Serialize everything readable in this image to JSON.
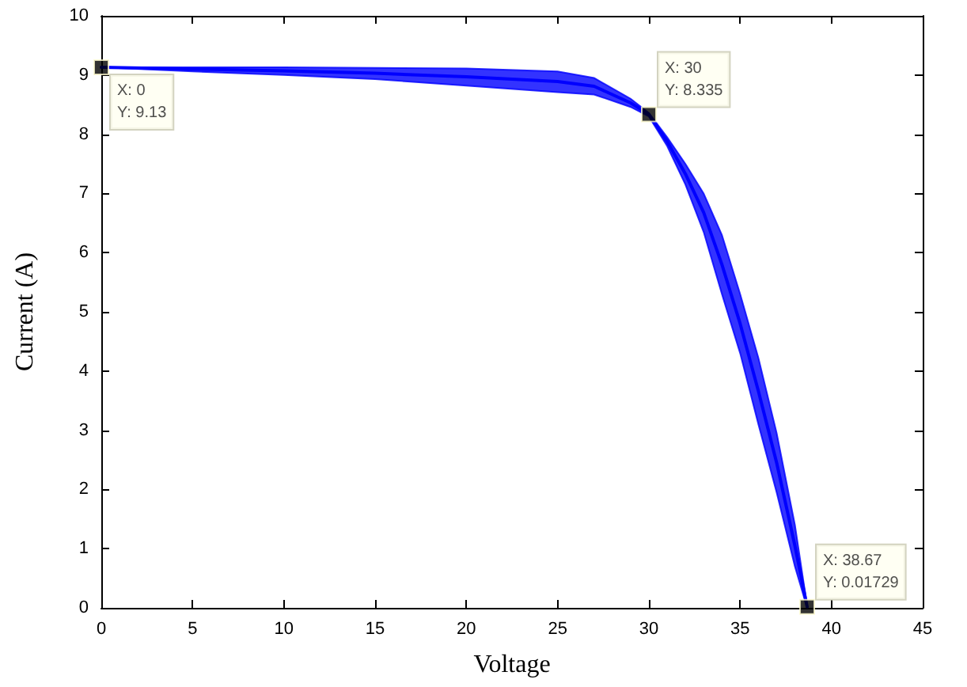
{
  "chart_data": {
    "type": "line",
    "xlabel": "Voltage",
    "ylabel": "Current (A)",
    "xlim": [
      0,
      45
    ],
    "xticks": [
      0,
      5,
      10,
      15,
      20,
      25,
      30,
      35,
      40,
      45
    ],
    "ylim": [
      0,
      10
    ],
    "yticks": [
      0,
      1,
      2,
      3,
      4,
      5,
      6,
      7,
      8,
      9,
      10
    ],
    "grid": false,
    "series": [
      {
        "color": "#0000ff",
        "marker": "none",
        "x": [
          0,
          5,
          10,
          15,
          20,
          25,
          27,
          29,
          30,
          31,
          32,
          33,
          34,
          35,
          36,
          37,
          38,
          38.67
        ],
        "values": [
          9.13,
          9.1,
          9.07,
          9.03,
          8.97,
          8.89,
          8.81,
          8.53,
          8.335,
          7.88,
          7.33,
          6.68,
          5.8,
          4.8,
          3.66,
          2.45,
          1.05,
          0.01729
        ],
        "lower": [
          9.13,
          9.06,
          9.0,
          8.93,
          8.82,
          8.71,
          8.67,
          8.46,
          8.3,
          7.8,
          7.15,
          6.35,
          5.3,
          4.3,
          3.1,
          1.95,
          0.7,
          0
        ],
        "upper": [
          9.13,
          9.13,
          9.13,
          9.12,
          9.11,
          9.06,
          8.95,
          8.6,
          8.36,
          7.95,
          7.5,
          7.0,
          6.3,
          5.3,
          4.22,
          2.95,
          1.4,
          0.03
        ]
      },
      {
        "type": "scatter",
        "color": "#000000",
        "marker": "square",
        "x": [
          0,
          30,
          38.67
        ],
        "values": [
          9.13,
          8.335,
          0.01729
        ]
      }
    ],
    "annotations": [
      {
        "text": "X: 0\nY: 9.13",
        "x": 0,
        "y": 9.13
      },
      {
        "text": "X: 30\nY: 8.335",
        "x": 30,
        "y": 8.335
      },
      {
        "text": "X: 38.67\nY: 0.01729",
        "x": 38.67,
        "y": 0.01729
      }
    ]
  }
}
